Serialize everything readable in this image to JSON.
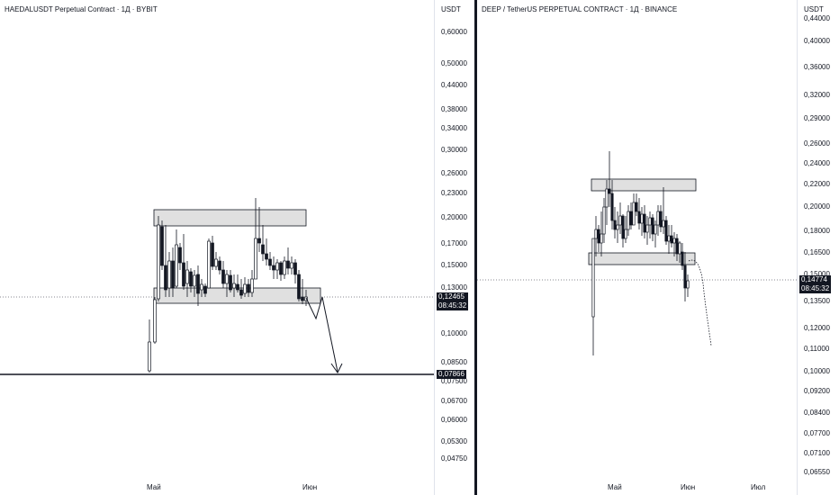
{
  "left_chart": {
    "title": "HAEDALUSDT Perpetual Contract · 1Д · BYBIT",
    "unit": "USDT",
    "y_ticks": [
      "0,60000",
      "0,50000",
      "0,44000",
      "0,38000",
      "0,34000",
      "0,30000",
      "0,26000",
      "0,23000",
      "0,20000",
      "0,17000",
      "0,15000",
      "0,13000",
      "0,10000",
      "0,08500",
      "0,07500",
      "0,06700",
      "0,06000",
      "0,05300",
      "0,04750"
    ],
    "x_ticks": [
      "Май",
      "Июн"
    ],
    "last_price": "0,12465",
    "countdown": "08:45:32",
    "support_level": "0,07866",
    "colors": {
      "line": "#131722",
      "zone": "#d1d4dc",
      "grid": "#e0e3eb"
    }
  },
  "right_chart": {
    "title": "DEEP / TetherUS PERPETUAL CONTRACT · 1Д · BINANCE",
    "unit": "USDT",
    "y_ticks": [
      "0,44000",
      "0,40000",
      "0,36000",
      "0,32000",
      "0,29000",
      "0,26000",
      "0,24000",
      "0,22000",
      "0,20000",
      "0,18000",
      "0,16500",
      "0,15000",
      "0,13500",
      "0,12000",
      "0,11000",
      "0,10000",
      "0,09200",
      "0,08400",
      "0,07700",
      "0,07100",
      "0,06550"
    ],
    "x_ticks": [
      "Май",
      "Июн",
      "Июл"
    ],
    "last_price": "0,14774",
    "countdown": "08:45:32"
  }
}
